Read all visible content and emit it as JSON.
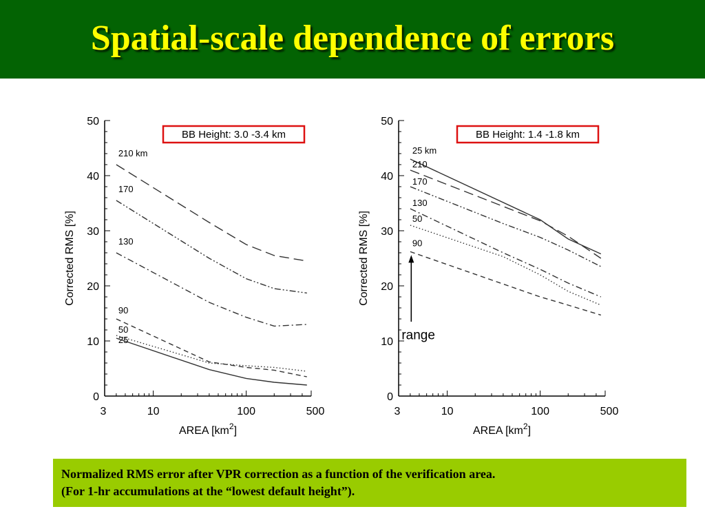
{
  "slide": {
    "title": "Spatial-scale dependence of errors",
    "title_color": "#ffff00",
    "header_bg": "#036303"
  },
  "caption": {
    "line1": "Normalized RMS error after VPR correction as a function of the verification area.",
    "line2": "(For 1-hr accumulations at the “lowest default height”).",
    "bg": "#99cc00"
  },
  "chart_data": [
    {
      "type": "line",
      "box_label": "BB Height: 3.0 -3.4 km",
      "box_color": "#dd1111",
      "xlabel": "AREA [km",
      "xlabel_sup": "2",
      "xlabel_end": "]",
      "ylabel": "Corrected RMS [%]",
      "xscale": "log",
      "xlim": [
        3,
        500
      ],
      "ylim": [
        0,
        50
      ],
      "xticks": [
        3,
        10,
        100,
        500
      ],
      "yticks": [
        0,
        10,
        20,
        30,
        40,
        50
      ],
      "series": [
        {
          "name": "210 km",
          "style": "longdash",
          "x": [
            4,
            40,
            100,
            200,
            450
          ],
          "y": [
            42,
            31.5,
            27.5,
            25.5,
            24.5
          ]
        },
        {
          "name": "170",
          "style": "dashdotdot",
          "x": [
            4,
            40,
            100,
            200,
            450
          ],
          "y": [
            35.5,
            25,
            21.3,
            19.5,
            18.7
          ]
        },
        {
          "name": "130",
          "style": "dashdot",
          "x": [
            4,
            40,
            100,
            200,
            450
          ],
          "y": [
            26,
            17,
            14.3,
            12.7,
            13
          ]
        },
        {
          "name": "90",
          "style": "dash",
          "x": [
            4,
            40,
            100,
            200,
            450
          ],
          "y": [
            14,
            6.2,
            5.2,
            4.7,
            3.5
          ]
        },
        {
          "name": "50",
          "style": "dot",
          "x": [
            4,
            40,
            100,
            200,
            450
          ],
          "y": [
            11,
            6,
            5.5,
            5.2,
            4.5
          ]
        },
        {
          "name": "25",
          "style": "solid",
          "x": [
            4,
            40,
            100,
            200,
            450
          ],
          "y": [
            10.5,
            4.8,
            3.2,
            2.5,
            2
          ]
        }
      ]
    },
    {
      "type": "line",
      "box_label": "BB Height: 1.4 -1.8 km",
      "box_color": "#dd1111",
      "xlabel": "AREA [km",
      "xlabel_sup": "2",
      "xlabel_end": "]",
      "ylabel": "Corrected RMS [%]",
      "xscale": "log",
      "xlim": [
        3,
        500
      ],
      "ylim": [
        0,
        50
      ],
      "xticks": [
        3,
        10,
        100,
        500
      ],
      "yticks": [
        0,
        10,
        20,
        30,
        40,
        50
      ],
      "annotation": "range",
      "series": [
        {
          "name": "25 km",
          "style": "solid",
          "x": [
            4,
            100,
            200,
            450
          ],
          "y": [
            43,
            32,
            28.5,
            25.8
          ]
        },
        {
          "name": "210",
          "style": "longdash",
          "x": [
            4,
            100,
            200,
            450
          ],
          "y": [
            41,
            31.8,
            29,
            25
          ]
        },
        {
          "name": "170",
          "style": "dashdotdot",
          "x": [
            4,
            40,
            100,
            200,
            450
          ],
          "y": [
            38,
            31.3,
            28.8,
            26.5,
            23.5
          ]
        },
        {
          "name": "130",
          "style": "dashdot",
          "x": [
            4,
            40,
            100,
            200,
            450
          ],
          "y": [
            34,
            26,
            23,
            20.5,
            18
          ]
        },
        {
          "name": "50",
          "style": "dot",
          "x": [
            4,
            40,
            100,
            200,
            450
          ],
          "y": [
            31,
            25.3,
            22,
            19,
            16.5
          ]
        },
        {
          "name": "90",
          "style": "dash",
          "x": [
            4,
            100,
            200,
            450
          ],
          "y": [
            26.2,
            18,
            16.5,
            14.7
          ]
        }
      ]
    }
  ]
}
